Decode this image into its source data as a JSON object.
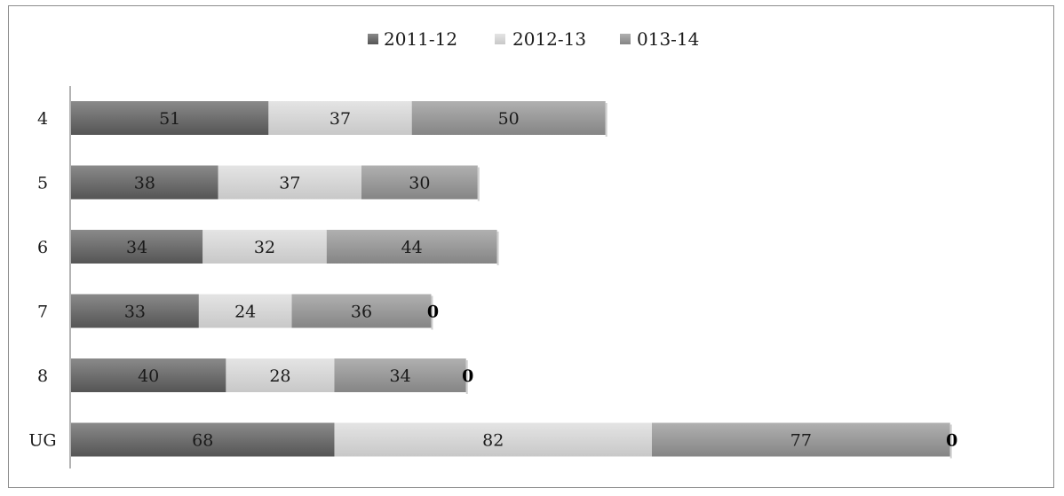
{
  "chart_data": {
    "type": "bar",
    "orientation": "horizontal",
    "stacked": true,
    "categories": [
      "4",
      "5",
      "6",
      "7",
      "8",
      "UG"
    ],
    "series": [
      {
        "name": "2011-12",
        "values": [
          51,
          38,
          34,
          33,
          40,
          68
        ],
        "color": "#6e6e6e"
      },
      {
        "name": "2012-13",
        "values": [
          37,
          37,
          32,
          24,
          28,
          82
        ],
        "color": "#d4d4d4"
      },
      {
        "name": "013-14",
        "values": [
          50,
          30,
          44,
          36,
          34,
          77
        ],
        "color": "#9a9a9a"
      }
    ],
    "extra_labels": [
      "",
      "",
      "",
      "0",
      "0",
      "0"
    ],
    "xlim": [
      0,
      230
    ],
    "legend_position": "top",
    "grid": false
  }
}
